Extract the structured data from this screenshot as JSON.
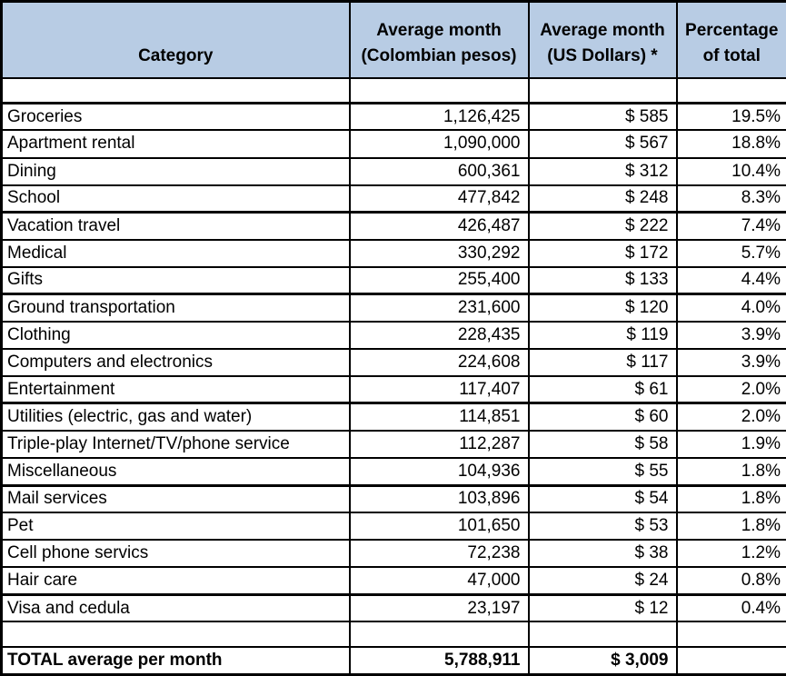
{
  "colors": {
    "header_bg": "#B8CCE4",
    "border": "#000000",
    "background": "#FFFFFF",
    "text": "#000000"
  },
  "table": {
    "header": {
      "category": "Category",
      "pesos_line1": "Average month",
      "pesos_line2": "(Colombian pesos)",
      "dollars_line1": "Average month",
      "dollars_line2": "(US Dollars) *",
      "percent_line1": "Percentage",
      "percent_line2": "of total"
    },
    "rows": [
      {
        "category": "Groceries",
        "pesos": "1,126,425",
        "dollars": "$ 585",
        "percent": "19.5%",
        "group_end": false
      },
      {
        "category": "Apartment rental",
        "pesos": "1,090,000",
        "dollars": "$ 567",
        "percent": "18.8%",
        "group_end": false
      },
      {
        "category": "Dining",
        "pesos": "600,361",
        "dollars": "$ 312",
        "percent": "10.4%",
        "group_end": false
      },
      {
        "category": "School",
        "pesos": "477,842",
        "dollars": "$ 248",
        "percent": "8.3%",
        "group_end": true
      },
      {
        "category": "Vacation travel",
        "pesos": "426,487",
        "dollars": "$ 222",
        "percent": "7.4%",
        "group_end": false
      },
      {
        "category": "Medical",
        "pesos": "330,292",
        "dollars": "$ 172",
        "percent": "5.7%",
        "group_end": false
      },
      {
        "category": "Gifts",
        "pesos": "255,400",
        "dollars": "$ 133",
        "percent": "4.4%",
        "group_end": true
      },
      {
        "category": "Ground transportation",
        "pesos": "231,600",
        "dollars": "$ 120",
        "percent": "4.0%",
        "group_end": false
      },
      {
        "category": "Clothing",
        "pesos": "228,435",
        "dollars": "$ 119",
        "percent": "3.9%",
        "group_end": false
      },
      {
        "category": "Computers and electronics",
        "pesos": "224,608",
        "dollars": "$ 117",
        "percent": "3.9%",
        "group_end": false
      },
      {
        "category": "Entertainment",
        "pesos": "117,407",
        "dollars": "$ 61",
        "percent": "2.0%",
        "group_end": true
      },
      {
        "category": "Utilities (electric, gas and water)",
        "pesos": "114,851",
        "dollars": "$ 60",
        "percent": "2.0%",
        "group_end": false
      },
      {
        "category": "Triple-play Internet/TV/phone service",
        "pesos": "112,287",
        "dollars": "$ 58",
        "percent": "1.9%",
        "group_end": false
      },
      {
        "category": "Miscellaneous",
        "pesos": "104,936",
        "dollars": "$ 55",
        "percent": "1.8%",
        "group_end": true
      },
      {
        "category": "Mail services",
        "pesos": "103,896",
        "dollars": "$ 54",
        "percent": "1.8%",
        "group_end": false
      },
      {
        "category": "Pet",
        "pesos": "101,650",
        "dollars": "$ 53",
        "percent": "1.8%",
        "group_end": false
      },
      {
        "category": "Cell phone servics",
        "pesos": "72,238",
        "dollars": "$ 38",
        "percent": "1.2%",
        "group_end": false
      },
      {
        "category": "Hair care",
        "pesos": "47,000",
        "dollars": "$ 24",
        "percent": "0.8%",
        "group_end": true
      },
      {
        "category": "Visa and cedula",
        "pesos": "23,197",
        "dollars": "$ 12",
        "percent": "0.4%",
        "group_end": false
      }
    ],
    "total": {
      "category": "TOTAL average per month",
      "pesos": "5,788,911",
      "dollars": "$ 3,009",
      "percent": ""
    }
  },
  "chart_data": {
    "type": "table",
    "title": "",
    "columns": [
      "Category",
      "Average month (Colombian pesos)",
      "Average month (US Dollars) *",
      "Percentage of total"
    ],
    "rows": [
      [
        "Groceries",
        1126425,
        585,
        19.5
      ],
      [
        "Apartment rental",
        1090000,
        567,
        18.8
      ],
      [
        "Dining",
        600361,
        312,
        10.4
      ],
      [
        "School",
        477842,
        248,
        8.3
      ],
      [
        "Vacation travel",
        426487,
        222,
        7.4
      ],
      [
        "Medical",
        330292,
        172,
        5.7
      ],
      [
        "Gifts",
        255400,
        133,
        4.4
      ],
      [
        "Ground transportation",
        231600,
        120,
        4.0
      ],
      [
        "Clothing",
        228435,
        119,
        3.9
      ],
      [
        "Computers and electronics",
        224608,
        117,
        3.9
      ],
      [
        "Entertainment",
        117407,
        61,
        2.0
      ],
      [
        "Utilities (electric, gas and water)",
        114851,
        60,
        2.0
      ],
      [
        "Triple-play Internet/TV/phone service",
        112287,
        58,
        1.9
      ],
      [
        "Miscellaneous",
        104936,
        55,
        1.8
      ],
      [
        "Mail services",
        103896,
        54,
        1.8
      ],
      [
        "Pet",
        101650,
        53,
        1.8
      ],
      [
        "Cell phone servics",
        72238,
        38,
        1.2
      ],
      [
        "Hair care",
        47000,
        24,
        0.8
      ],
      [
        "Visa and cedula",
        23197,
        12,
        0.4
      ]
    ],
    "total_row": [
      "TOTAL average per month",
      5788911,
      3009,
      null
    ]
  }
}
